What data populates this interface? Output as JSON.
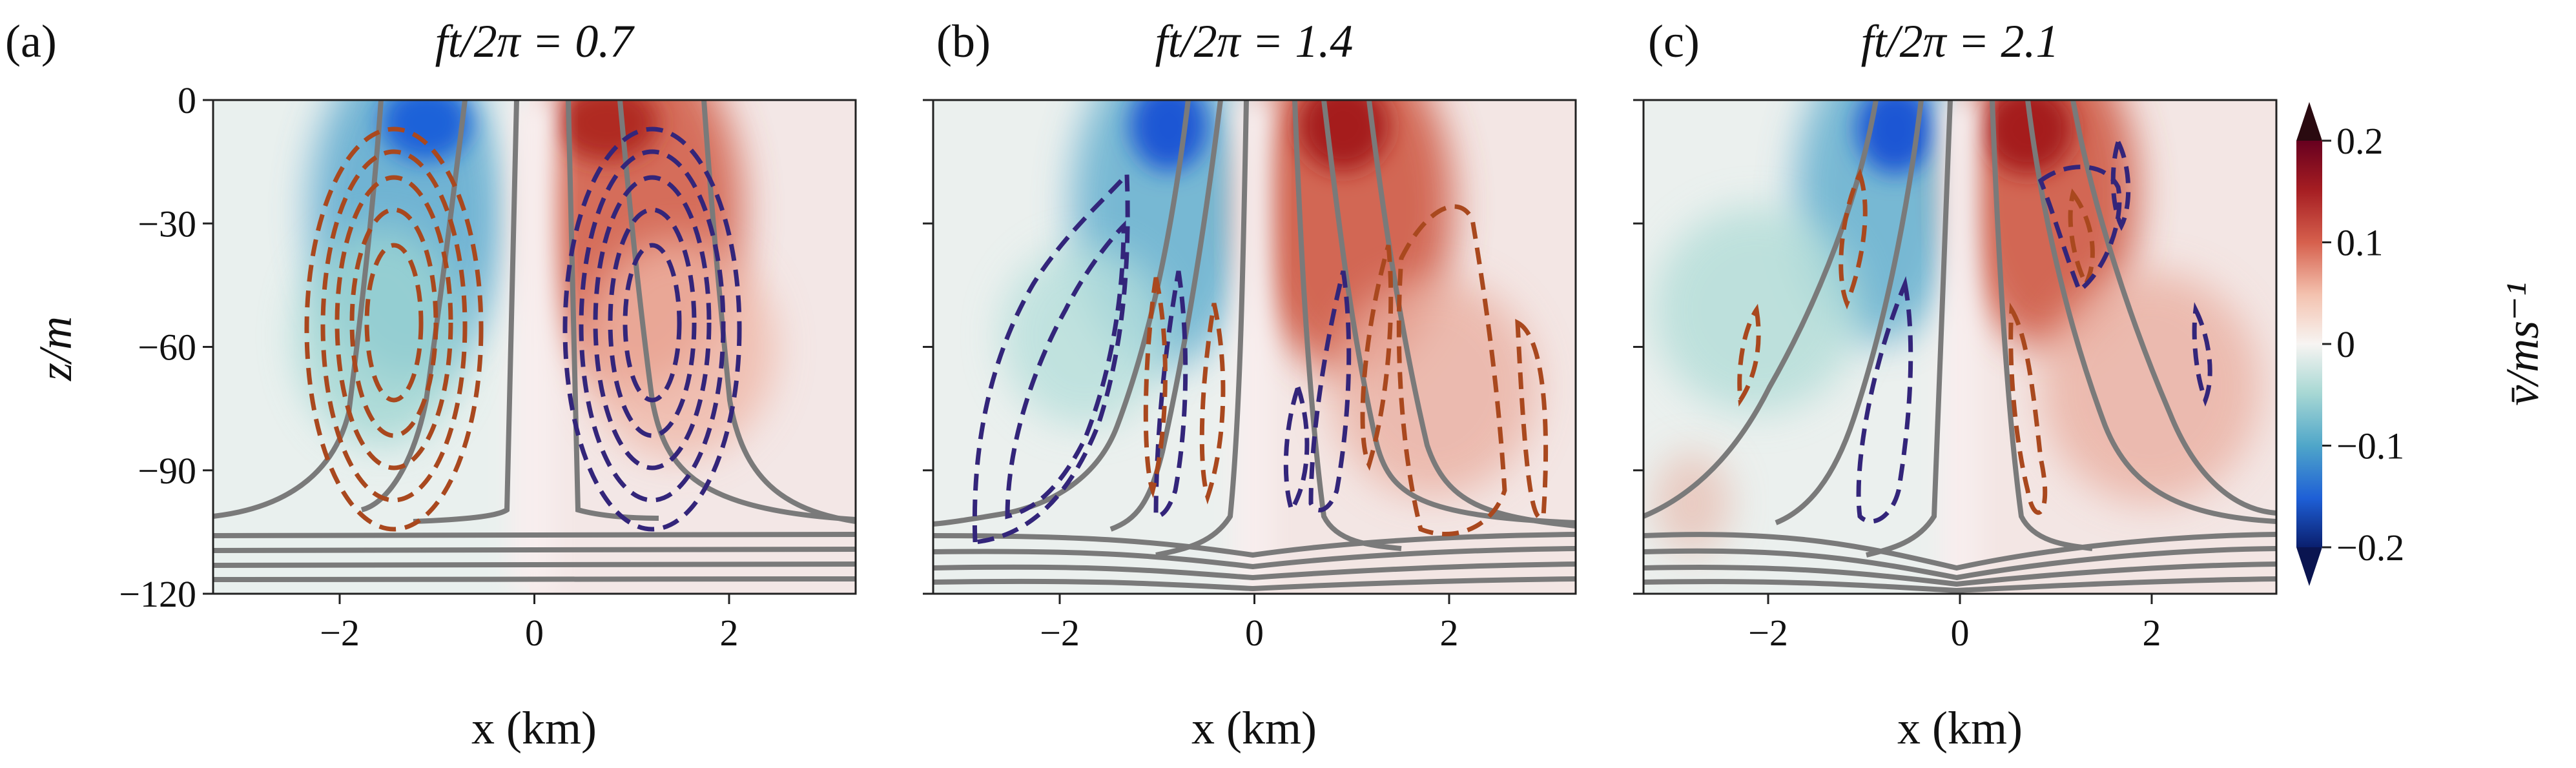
{
  "figure": {
    "colorbar": {
      "label": "v̄/ms⁻¹",
      "ticks": [
        "0.2",
        "0.1",
        "0",
        "−0.1",
        "−0.2"
      ],
      "tick_values": [
        0.2,
        0.1,
        0,
        -0.1,
        -0.2
      ],
      "range": [
        -0.2,
        0.2
      ],
      "colormap": "blue-white-red (balance)",
      "extend": "both"
    },
    "shared_y_axis": {
      "label": "z/m",
      "ticks": [
        "0",
        "−30",
        "−60",
        "−90",
        "−120"
      ]
    }
  },
  "chart_data": [
    {
      "type": "heatmap",
      "tag": "(a)",
      "title": "ft/2π = 0.7",
      "xlabel": "x (km)",
      "ylabel": "z/m",
      "xlim": [
        -3.3,
        3.3
      ],
      "ylim": [
        -120,
        0
      ],
      "xticks": [
        -2,
        0,
        2
      ],
      "xtick_labels": [
        "−2",
        "0",
        "2"
      ],
      "yticks": [
        0,
        -30,
        -60,
        -90,
        -120
      ],
      "ytick_labels": [
        "0",
        "−30",
        "−60",
        "−90",
        "−120"
      ],
      "cells": [
        {
          "x": -1.2,
          "z": -15,
          "v": -0.12
        },
        {
          "x": -1.2,
          "z": -60,
          "v": -0.06
        },
        {
          "x": 1.0,
          "z": -15,
          "v": 0.13
        },
        {
          "x": 1.0,
          "z": -60,
          "v": 0.07
        },
        {
          "x": 0.0,
          "z": -60,
          "v": 0.01
        }
      ],
      "contours": {
        "solid_gray": "density isopycnals, mixed layer base near z ≈ −102 m",
        "dashed_orange": "overturning streamfunction (one sign), centred near x ≈ −1.5 km",
        "dashed_purple": "overturning streamfunction (opposite sign), centred near x ≈ 1.2 km"
      }
    },
    {
      "type": "heatmap",
      "tag": "(b)",
      "title": "ft/2π = 1.4",
      "xlabel": "x (km)",
      "ylabel": "z/m",
      "xlim": [
        -3.3,
        3.3
      ],
      "ylim": [
        -120,
        0
      ],
      "xticks": [
        -2,
        0,
        2
      ],
      "xtick_labels": [
        "−2",
        "0",
        "2"
      ],
      "yticks": [
        0,
        -30,
        -60,
        -90,
        -120
      ],
      "cells": [
        {
          "x": -0.9,
          "z": -10,
          "v": -0.15
        },
        {
          "x": -1.6,
          "z": -50,
          "v": -0.05
        },
        {
          "x": 0.8,
          "z": -10,
          "v": 0.15
        },
        {
          "x": 1.6,
          "z": -50,
          "v": 0.06
        },
        {
          "x": 0.0,
          "z": -60,
          "v": 0.0
        }
      ]
    },
    {
      "type": "heatmap",
      "tag": "(c)",
      "title": "ft/2π = 2.1",
      "xlabel": "x (km)",
      "ylabel": "z/m",
      "xlim": [
        -3.3,
        3.3
      ],
      "ylim": [
        -120,
        0
      ],
      "xticks": [
        -2,
        0,
        2
      ],
      "xtick_labels": [
        "−2",
        "0",
        "2"
      ],
      "yticks": [
        0,
        -30,
        -60,
        -90,
        -120
      ],
      "cells": [
        {
          "x": -0.7,
          "z": -10,
          "v": -0.15
        },
        {
          "x": -1.6,
          "z": -55,
          "v": -0.04
        },
        {
          "x": 0.7,
          "z": -10,
          "v": 0.16
        },
        {
          "x": 1.7,
          "z": -55,
          "v": 0.05
        },
        {
          "x": 0.0,
          "z": -60,
          "v": 0.0
        }
      ]
    }
  ]
}
